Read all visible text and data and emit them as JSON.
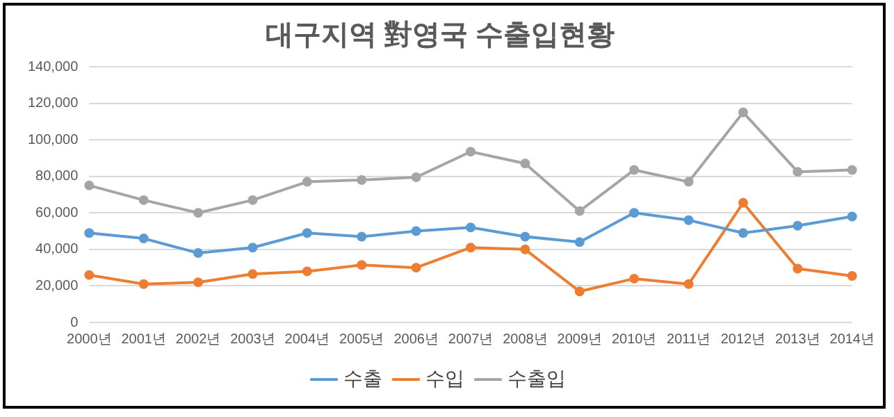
{
  "chart_data": {
    "type": "line",
    "title": "대구지역 對영국 수출입현황",
    "categories": [
      "2000년",
      "2001년",
      "2002년",
      "2003년",
      "2004년",
      "2005년",
      "2006년",
      "2007년",
      "2008년",
      "2009년",
      "2010년",
      "2011년",
      "2012년",
      "2013년",
      "2014년"
    ],
    "series": [
      {
        "name": "수출",
        "color": "#5b9bd5",
        "values": [
          49000,
          46000,
          38000,
          41000,
          49000,
          47000,
          50000,
          52000,
          47000,
          44000,
          60000,
          56000,
          49000,
          53000,
          58000
        ]
      },
      {
        "name": "수입",
        "color": "#ed7d31",
        "values": [
          26000,
          21000,
          22000,
          26500,
          28000,
          31500,
          30000,
          41000,
          40000,
          17000,
          24000,
          21000,
          65500,
          29500,
          25500
        ]
      },
      {
        "name": "수출입",
        "color": "#a5a5a5",
        "values": [
          75000,
          67000,
          60000,
          67000,
          77000,
          78000,
          79500,
          93500,
          87000,
          61000,
          83500,
          77000,
          115000,
          82500,
          83500
        ]
      }
    ],
    "ylim": [
      0,
      140000
    ],
    "yticks": [
      0,
      {
        "value": 20000,
        "label": "20,000"
      },
      {
        "value": 40000,
        "label": "40,000"
      },
      {
        "value": 60000,
        "label": "60,000"
      },
      {
        "value": 80000,
        "label": "80,000"
      },
      {
        "value": 100000,
        "label": "100,000"
      },
      {
        "value": 120000,
        "label": "120,000"
      },
      {
        "value": 140000,
        "label": "140,000"
      }
    ],
    "grid": "y",
    "legend": "bottom",
    "marker": "circle",
    "line_style": "solid"
  }
}
